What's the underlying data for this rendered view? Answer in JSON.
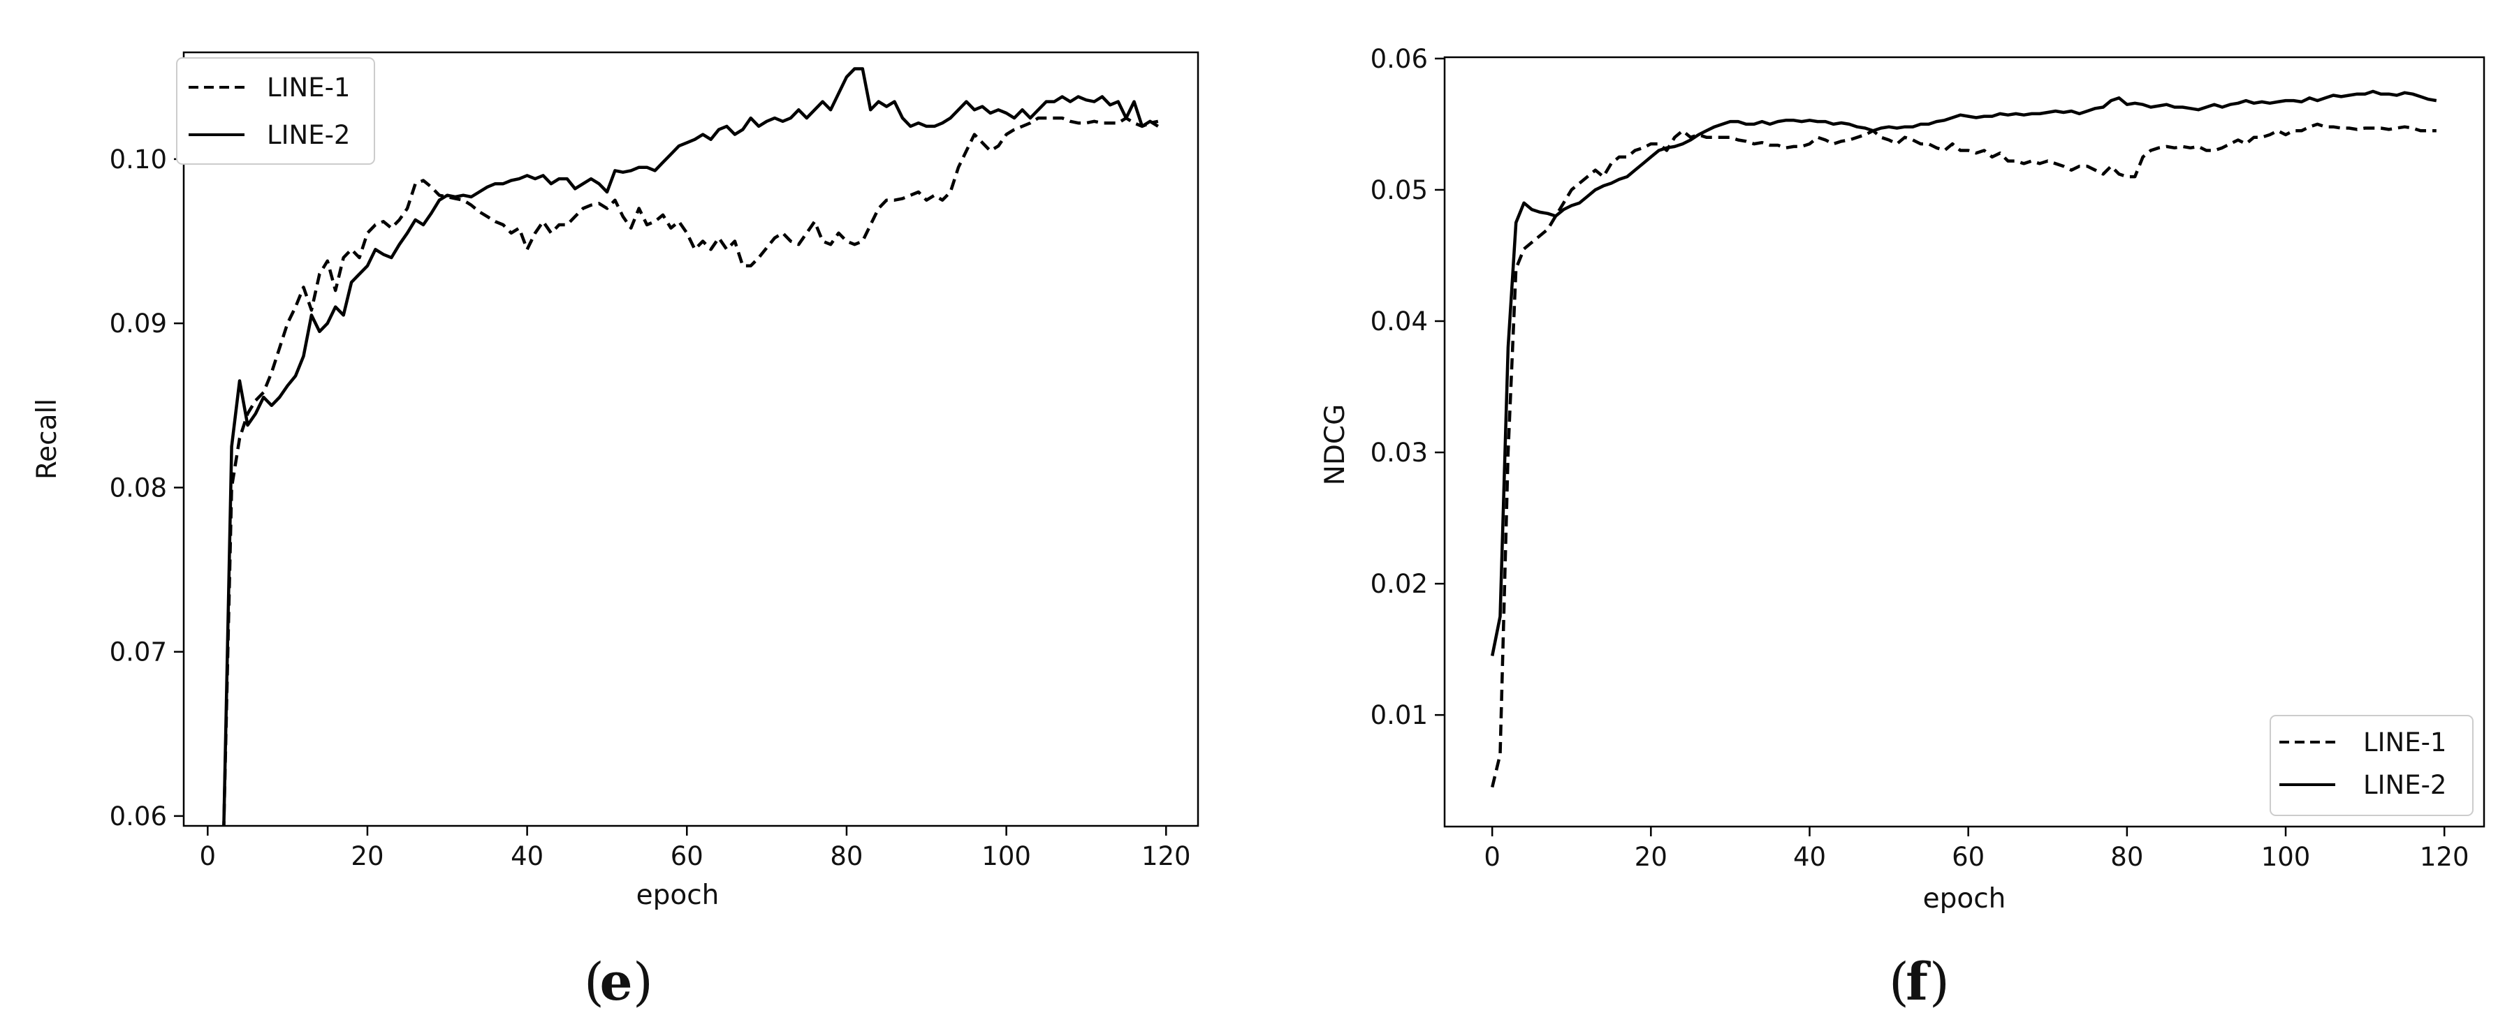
{
  "chart_data": [
    {
      "type": "line",
      "panel_label": "e",
      "xlabel": "epoch",
      "ylabel": "Recall",
      "xlim": [
        -3,
        124
      ],
      "ylim": [
        0.0594,
        0.1065
      ],
      "xticks": [
        0,
        20,
        40,
        60,
        80,
        100,
        120
      ],
      "yticks": [
        0.06,
        0.07,
        0.08,
        0.09,
        0.1
      ],
      "ytick_labels": [
        "0.06",
        "0.07",
        "0.08",
        "0.09",
        "0.10"
      ],
      "legend_position": "top-left",
      "series": [
        {
          "name": "LINE-1",
          "style": "dashed",
          "x": [
            2,
            3,
            4,
            5,
            6,
            7,
            8,
            9,
            10,
            11,
            12,
            13,
            14,
            15,
            16,
            17,
            18,
            19,
            20,
            21,
            22,
            23,
            24,
            25,
            26,
            27,
            28,
            29,
            30,
            31,
            32,
            33,
            34,
            35,
            36,
            37,
            38,
            39,
            40,
            41,
            42,
            43,
            44,
            45,
            46,
            47,
            48,
            49,
            50,
            51,
            52,
            53,
            54,
            55,
            56,
            57,
            58,
            59,
            60,
            61,
            62,
            63,
            64,
            65,
            66,
            67,
            68,
            69,
            70,
            71,
            72,
            73,
            74,
            75,
            76,
            77,
            78,
            79,
            80,
            81,
            82,
            83,
            84,
            85,
            86,
            87,
            88,
            89,
            90,
            91,
            92,
            93,
            94,
            95,
            96,
            97,
            98,
            99,
            100,
            101,
            102,
            103,
            104,
            105,
            106,
            107,
            108,
            109,
            110,
            111,
            112,
            113,
            114,
            115,
            116,
            117,
            118,
            119
          ],
          "values": [
            0.059,
            0.08,
            0.083,
            0.0845,
            0.0853,
            0.0858,
            0.087,
            0.0885,
            0.09,
            0.091,
            0.0922,
            0.0908,
            0.093,
            0.0938,
            0.092,
            0.094,
            0.0945,
            0.094,
            0.0955,
            0.096,
            0.0962,
            0.0958,
            0.0963,
            0.097,
            0.0985,
            0.0987,
            0.0983,
            0.0978,
            0.0977,
            0.0976,
            0.0975,
            0.0972,
            0.0968,
            0.0965,
            0.0962,
            0.096,
            0.0955,
            0.0958,
            0.0945,
            0.0955,
            0.0962,
            0.0955,
            0.096,
            0.096,
            0.0965,
            0.097,
            0.0972,
            0.0973,
            0.097,
            0.0975,
            0.0965,
            0.0958,
            0.097,
            0.096,
            0.0962,
            0.0966,
            0.0958,
            0.0962,
            0.0955,
            0.0945,
            0.095,
            0.0945,
            0.0952,
            0.0945,
            0.095,
            0.0935,
            0.0935,
            0.094,
            0.0946,
            0.0952,
            0.0955,
            0.095,
            0.0948,
            0.0955,
            0.0962,
            0.095,
            0.0948,
            0.0955,
            0.095,
            0.0948,
            0.095,
            0.096,
            0.097,
            0.0975,
            0.0975,
            0.0976,
            0.0978,
            0.098,
            0.0975,
            0.0978,
            0.0975,
            0.098,
            0.0995,
            0.1005,
            0.1015,
            0.101,
            0.1005,
            0.1008,
            0.1015,
            0.1018,
            0.102,
            0.1022,
            0.1025,
            0.1025,
            0.1025,
            0.1025,
            0.1023,
            0.1022,
            0.1022,
            0.1023,
            0.1022,
            0.1022,
            0.1022,
            0.1025,
            0.1022,
            0.102,
            0.1022,
            0.1023
          ]
        },
        {
          "name": "LINE-2",
          "style": "solid",
          "x": [
            2,
            3,
            4,
            5,
            6,
            7,
            8,
            9,
            10,
            11,
            12,
            13,
            14,
            15,
            16,
            17,
            18,
            19,
            20,
            21,
            22,
            23,
            24,
            25,
            26,
            27,
            28,
            29,
            30,
            31,
            32,
            33,
            34,
            35,
            36,
            37,
            38,
            39,
            40,
            41,
            42,
            43,
            44,
            45,
            46,
            47,
            48,
            49,
            50,
            51,
            52,
            53,
            54,
            55,
            56,
            57,
            58,
            59,
            60,
            61,
            62,
            63,
            64,
            65,
            66,
            67,
            68,
            69,
            70,
            71,
            72,
            73,
            74,
            75,
            76,
            77,
            78,
            79,
            80,
            81,
            82,
            83,
            84,
            85,
            86,
            87,
            88,
            89,
            90,
            91,
            92,
            93,
            94,
            95,
            96,
            97,
            98,
            99,
            100,
            101,
            102,
            103,
            104,
            105,
            106,
            107,
            108,
            109,
            110,
            111,
            112,
            113,
            114,
            115,
            116,
            117,
            118,
            119
          ],
          "values": [
            0.059,
            0.0825,
            0.0865,
            0.0838,
            0.0845,
            0.0855,
            0.085,
            0.0855,
            0.0862,
            0.0868,
            0.088,
            0.0905,
            0.0895,
            0.09,
            0.091,
            0.0905,
            0.0925,
            0.093,
            0.0935,
            0.0945,
            0.0942,
            0.094,
            0.0948,
            0.0955,
            0.0963,
            0.096,
            0.0967,
            0.0975,
            0.0978,
            0.0977,
            0.0978,
            0.0977,
            0.098,
            0.0983,
            0.0985,
            0.0985,
            0.0987,
            0.0988,
            0.099,
            0.0988,
            0.099,
            0.0985,
            0.0988,
            0.0988,
            0.0982,
            0.0985,
            0.0988,
            0.0985,
            0.098,
            0.0993,
            0.0992,
            0.0993,
            0.0995,
            0.0995,
            0.0993,
            0.0998,
            0.1003,
            0.1008,
            0.101,
            0.1012,
            0.1015,
            0.1012,
            0.1018,
            0.102,
            0.1015,
            0.1018,
            0.1025,
            0.102,
            0.1023,
            0.1025,
            0.1023,
            0.1025,
            0.103,
            0.1025,
            0.103,
            0.1035,
            0.103,
            0.104,
            0.105,
            0.1055,
            0.1055,
            0.103,
            0.1035,
            0.1032,
            0.1035,
            0.1025,
            0.102,
            0.1022,
            0.102,
            0.102,
            0.1022,
            0.1025,
            0.103,
            0.1035,
            0.103,
            0.1032,
            0.1028,
            0.103,
            0.1028,
            0.1025,
            0.103,
            0.1025,
            0.103,
            0.1035,
            0.1035,
            0.1038,
            0.1035,
            0.1038,
            0.1036,
            0.1035,
            0.1038,
            0.1033,
            0.1035,
            0.1025,
            0.1035,
            0.102,
            0.1023,
            0.102
          ]
        }
      ]
    },
    {
      "type": "line",
      "panel_label": "f",
      "xlabel": "epoch",
      "ylabel": "NDCG",
      "xlim": [
        -6,
        125
      ],
      "ylim": [
        0.0015,
        0.0601
      ],
      "xticks": [
        0,
        20,
        40,
        60,
        80,
        100,
        120
      ],
      "yticks": [
        0.01,
        0.02,
        0.03,
        0.04,
        0.05,
        0.06
      ],
      "ytick_labels": [
        "0.01",
        "0.02",
        "0.03",
        "0.04",
        "0.05",
        "0.06"
      ],
      "legend_position": "bottom-right",
      "series": [
        {
          "name": "LINE-1",
          "style": "dashed",
          "x": [
            0,
            1,
            2,
            3,
            4,
            5,
            6,
            7,
            8,
            9,
            10,
            11,
            12,
            13,
            14,
            15,
            16,
            17,
            18,
            19,
            20,
            21,
            22,
            23,
            24,
            25,
            26,
            27,
            28,
            29,
            30,
            31,
            32,
            33,
            34,
            35,
            36,
            37,
            38,
            39,
            40,
            41,
            42,
            43,
            44,
            45,
            46,
            47,
            48,
            49,
            50,
            51,
            52,
            53,
            54,
            55,
            56,
            57,
            58,
            59,
            60,
            61,
            62,
            63,
            64,
            65,
            66,
            67,
            68,
            69,
            70,
            71,
            72,
            73,
            74,
            75,
            76,
            77,
            78,
            79,
            80,
            81,
            82,
            83,
            84,
            85,
            86,
            87,
            88,
            89,
            90,
            91,
            92,
            93,
            94,
            95,
            96,
            97,
            98,
            99,
            100,
            101,
            102,
            103,
            104,
            105,
            106,
            107,
            108,
            109,
            110,
            111,
            112,
            113,
            114,
            115,
            116,
            117,
            118,
            119
          ],
          "values": [
            0.0045,
            0.007,
            0.03,
            0.044,
            0.0455,
            0.046,
            0.0465,
            0.047,
            0.048,
            0.049,
            0.05,
            0.0505,
            0.051,
            0.0515,
            0.051,
            0.052,
            0.0525,
            0.0525,
            0.053,
            0.0532,
            0.0535,
            0.0535,
            0.053,
            0.054,
            0.0545,
            0.054,
            0.0542,
            0.054,
            0.054,
            0.054,
            0.054,
            0.0538,
            0.0537,
            0.0535,
            0.0536,
            0.0534,
            0.0534,
            0.0532,
            0.0533,
            0.0533,
            0.0535,
            0.054,
            0.0538,
            0.0535,
            0.0537,
            0.0538,
            0.054,
            0.0542,
            0.0545,
            0.054,
            0.0538,
            0.0535,
            0.054,
            0.0538,
            0.0535,
            0.0535,
            0.0532,
            0.053,
            0.0535,
            0.053,
            0.053,
            0.0528,
            0.053,
            0.0525,
            0.0528,
            0.0522,
            0.0522,
            0.052,
            0.0522,
            0.052,
            0.0522,
            0.052,
            0.0518,
            0.0515,
            0.0518,
            0.0518,
            0.0515,
            0.0512,
            0.0518,
            0.0512,
            0.051,
            0.051,
            0.0525,
            0.053,
            0.0532,
            0.0533,
            0.0532,
            0.0533,
            0.0532,
            0.0533,
            0.053,
            0.053,
            0.0532,
            0.0535,
            0.0538,
            0.0535,
            0.054,
            0.054,
            0.0542,
            0.0545,
            0.0542,
            0.0545,
            0.0545,
            0.0548,
            0.055,
            0.0548,
            0.0548,
            0.0547,
            0.0547,
            0.0546,
            0.0547,
            0.0547,
            0.0547,
            0.0546,
            0.0547,
            0.0548,
            0.0547,
            0.0545,
            0.0545,
            0.0545
          ]
        },
        {
          "name": "LINE-2",
          "style": "solid",
          "x": [
            0,
            1,
            2,
            3,
            4,
            5,
            6,
            7,
            8,
            9,
            10,
            11,
            12,
            13,
            14,
            15,
            16,
            17,
            18,
            19,
            20,
            21,
            22,
            23,
            24,
            25,
            26,
            27,
            28,
            29,
            30,
            31,
            32,
            33,
            34,
            35,
            36,
            37,
            38,
            39,
            40,
            41,
            42,
            43,
            44,
            45,
            46,
            47,
            48,
            49,
            50,
            51,
            52,
            53,
            54,
            55,
            56,
            57,
            58,
            59,
            60,
            61,
            62,
            63,
            64,
            65,
            66,
            67,
            68,
            69,
            70,
            71,
            72,
            73,
            74,
            75,
            76,
            77,
            78,
            79,
            80,
            81,
            82,
            83,
            84,
            85,
            86,
            87,
            88,
            89,
            90,
            91,
            92,
            93,
            94,
            95,
            96,
            97,
            98,
            99,
            100,
            101,
            102,
            103,
            104,
            105,
            106,
            107,
            108,
            109,
            110,
            111,
            112,
            113,
            114,
            115,
            116,
            117,
            118,
            119
          ],
          "values": [
            0.0145,
            0.0175,
            0.038,
            0.0475,
            0.049,
            0.0485,
            0.0483,
            0.0482,
            0.048,
            0.0485,
            0.0488,
            0.049,
            0.0495,
            0.05,
            0.0503,
            0.0505,
            0.0508,
            0.051,
            0.0515,
            0.052,
            0.0525,
            0.053,
            0.0532,
            0.0533,
            0.0535,
            0.0538,
            0.0542,
            0.0545,
            0.0548,
            0.055,
            0.0552,
            0.0552,
            0.055,
            0.055,
            0.0552,
            0.055,
            0.0552,
            0.0553,
            0.0553,
            0.0552,
            0.0553,
            0.0552,
            0.0552,
            0.055,
            0.0551,
            0.055,
            0.0548,
            0.0547,
            0.0545,
            0.0547,
            0.0548,
            0.0547,
            0.0548,
            0.0548,
            0.055,
            0.055,
            0.0552,
            0.0553,
            0.0555,
            0.0557,
            0.0556,
            0.0555,
            0.0556,
            0.0556,
            0.0558,
            0.0557,
            0.0558,
            0.0557,
            0.0558,
            0.0558,
            0.0559,
            0.056,
            0.0559,
            0.056,
            0.0558,
            0.056,
            0.0562,
            0.0563,
            0.0568,
            0.057,
            0.0565,
            0.0566,
            0.0565,
            0.0563,
            0.0564,
            0.0565,
            0.0563,
            0.0563,
            0.0562,
            0.0561,
            0.0563,
            0.0565,
            0.0563,
            0.0565,
            0.0566,
            0.0568,
            0.0566,
            0.0567,
            0.0566,
            0.0567,
            0.0568,
            0.0568,
            0.0567,
            0.057,
            0.0568,
            0.057,
            0.0572,
            0.0571,
            0.0572,
            0.0573,
            0.0573,
            0.0575,
            0.0573,
            0.0573,
            0.0572,
            0.0574,
            0.0573,
            0.0571,
            0.0569,
            0.0568
          ]
        }
      ]
    }
  ]
}
